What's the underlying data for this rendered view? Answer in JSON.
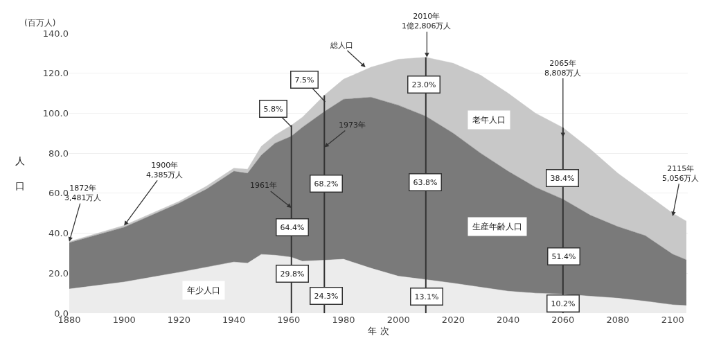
{
  "chart_data": {
    "type": "area",
    "stacked": true,
    "xlabel": "年 次",
    "ylabel": "人口",
    "x": [
      1880,
      1900,
      1920,
      1930,
      1940,
      1945,
      1950,
      1955,
      1961,
      1965,
      1973,
      1980,
      1990,
      2000,
      2010,
      2020,
      2030,
      2040,
      2050,
      2060,
      2070,
      2080,
      2090,
      2100,
      2105
    ],
    "series": [
      {
        "name": "年少人口",
        "color": "#ececec",
        "values": [
          12.1,
          15.6,
          20.4,
          23,
          25.6,
          25,
          29.4,
          29,
          28,
          26,
          26.5,
          27,
          22.5,
          18.5,
          16.8,
          15,
          13,
          11,
          10,
          9.5,
          8.5,
          7.5,
          6,
          4.2,
          3.8
        ]
      },
      {
        "name": "生産年齢人口",
        "color": "#7a7a7a",
        "values": [
          23.2,
          27.4,
          34.6,
          39,
          45.4,
          45,
          49.6,
          56,
          60.5,
          67,
          74.3,
          80,
          85.5,
          85.5,
          81.7,
          75,
          67,
          60,
          53,
          47.5,
          40.5,
          35.8,
          32.8,
          25.3,
          22.9
        ]
      },
      {
        "name": "老年人口",
        "color": "#c8c8c8",
        "values": [
          0.5,
          0.9,
          0.9,
          1.5,
          1.5,
          2,
          4.4,
          4,
          5.5,
          5,
          8.2,
          10,
          15,
          23,
          29.5,
          35,
          39,
          39,
          37,
          35.8,
          33,
          26.7,
          21.2,
          20.5,
          19.3
        ]
      }
    ],
    "xlim": [
      1880,
      2105.5
    ],
    "xticks": [
      1880,
      1900,
      1920,
      1940,
      1960,
      1980,
      2000,
      2020,
      2040,
      2060,
      2080,
      2100
    ],
    "ylim": [
      0,
      140
    ],
    "yticks": [
      {
        "value": 0,
        "label": "0.0"
      },
      {
        "value": 20,
        "label": "20.0"
      },
      {
        "value": 40,
        "label": "40.0"
      },
      {
        "value": 60,
        "label": "60.0"
      },
      {
        "value": 80,
        "label": "80.0"
      },
      {
        "value": 100,
        "label": "100.0"
      },
      {
        "value": 120,
        "label": "120.0"
      },
      {
        "value": 140,
        "label": "140.0"
      }
    ],
    "grid": "y",
    "legend": false,
    "ref_lines": [
      {
        "axis": "x",
        "value": 1961,
        "color": "#333333"
      },
      {
        "axis": "x",
        "value": 1973,
        "color": "#333333"
      },
      {
        "axis": "x",
        "value": 2010,
        "color": "#333333"
      },
      {
        "axis": "x",
        "value": 2060,
        "color": "#333333"
      }
    ],
    "annotations": [
      "(百万人)",
      {
        "text": "総人口",
        "x": 1988,
        "y": 123
      },
      {
        "text": "2010年\n1億2,806万人",
        "x": 2010.4,
        "y": 128
      },
      {
        "text": "2065年\n8,808万人",
        "x": 2060,
        "y": 88
      },
      {
        "text": "2115年\n5,056万人",
        "x": 2100,
        "y": 48.5
      },
      {
        "text": "1900年\n4,385万人",
        "x": 1900,
        "y": 43.85
      },
      {
        "text": "1872年\n3,481万人",
        "x": 1880,
        "y": 35.8
      },
      {
        "text": "1961年",
        "x": 1961,
        "y": 52.7
      },
      {
        "text": "1973年",
        "x": 1973,
        "y": 83
      },
      {
        "text": "5.8%",
        "x": 1961,
        "y": 93.2
      },
      {
        "text": "7.5%",
        "x": 1973.3,
        "y": 105.7
      },
      {
        "text": "23.0%",
        "x": 2009.4,
        "y": 114.3
      },
      {
        "text": "68.2%",
        "x": 1973.8,
        "y": 64.8
      },
      {
        "text": "63.8%",
        "x": 2009.9,
        "y": 65.5
      },
      {
        "text": "38.4%",
        "x": 2059.9,
        "y": 67.6
      },
      {
        "text": "64.4%",
        "x": 1961.2,
        "y": 43
      },
      {
        "text": "29.8%",
        "x": 1961.2,
        "y": 19.8
      },
      {
        "text": "24.3%",
        "x": 1973.8,
        "y": 8.7
      },
      {
        "text": "13.1%",
        "x": 2010.4,
        "y": 8.3
      },
      {
        "text": "51.4%",
        "x": 2060.4,
        "y": 28.4
      },
      {
        "text": "10.2%",
        "x": 2060,
        "y": 5
      }
    ]
  }
}
